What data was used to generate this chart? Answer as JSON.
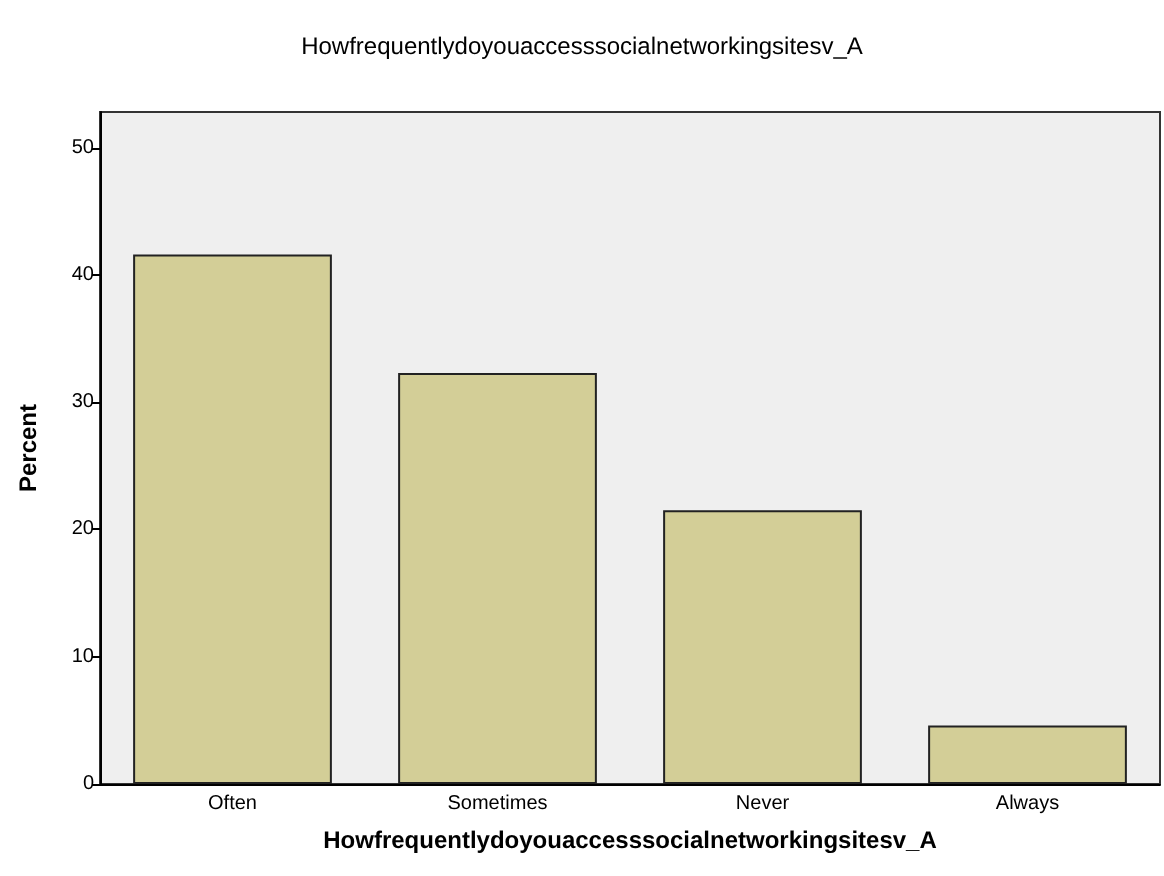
{
  "chart_data": {
    "type": "bar",
    "title": "Howfrequentlydoyouaccesssocialnetworkingsitesv_A",
    "xlabel": "Howfrequentlydoyouaccesssocialnetworkingsitesv_A",
    "ylabel": "Percent",
    "categories": [
      "Often",
      "Sometimes",
      "Never",
      "Always"
    ],
    "values": [
      41.6,
      32.3,
      21.5,
      4.6
    ],
    "color": "#d3ce97",
    "ylim": [
      0,
      52.8
    ],
    "yticks": [
      0,
      10,
      20,
      30,
      40,
      50
    ],
    "grid": false
  }
}
